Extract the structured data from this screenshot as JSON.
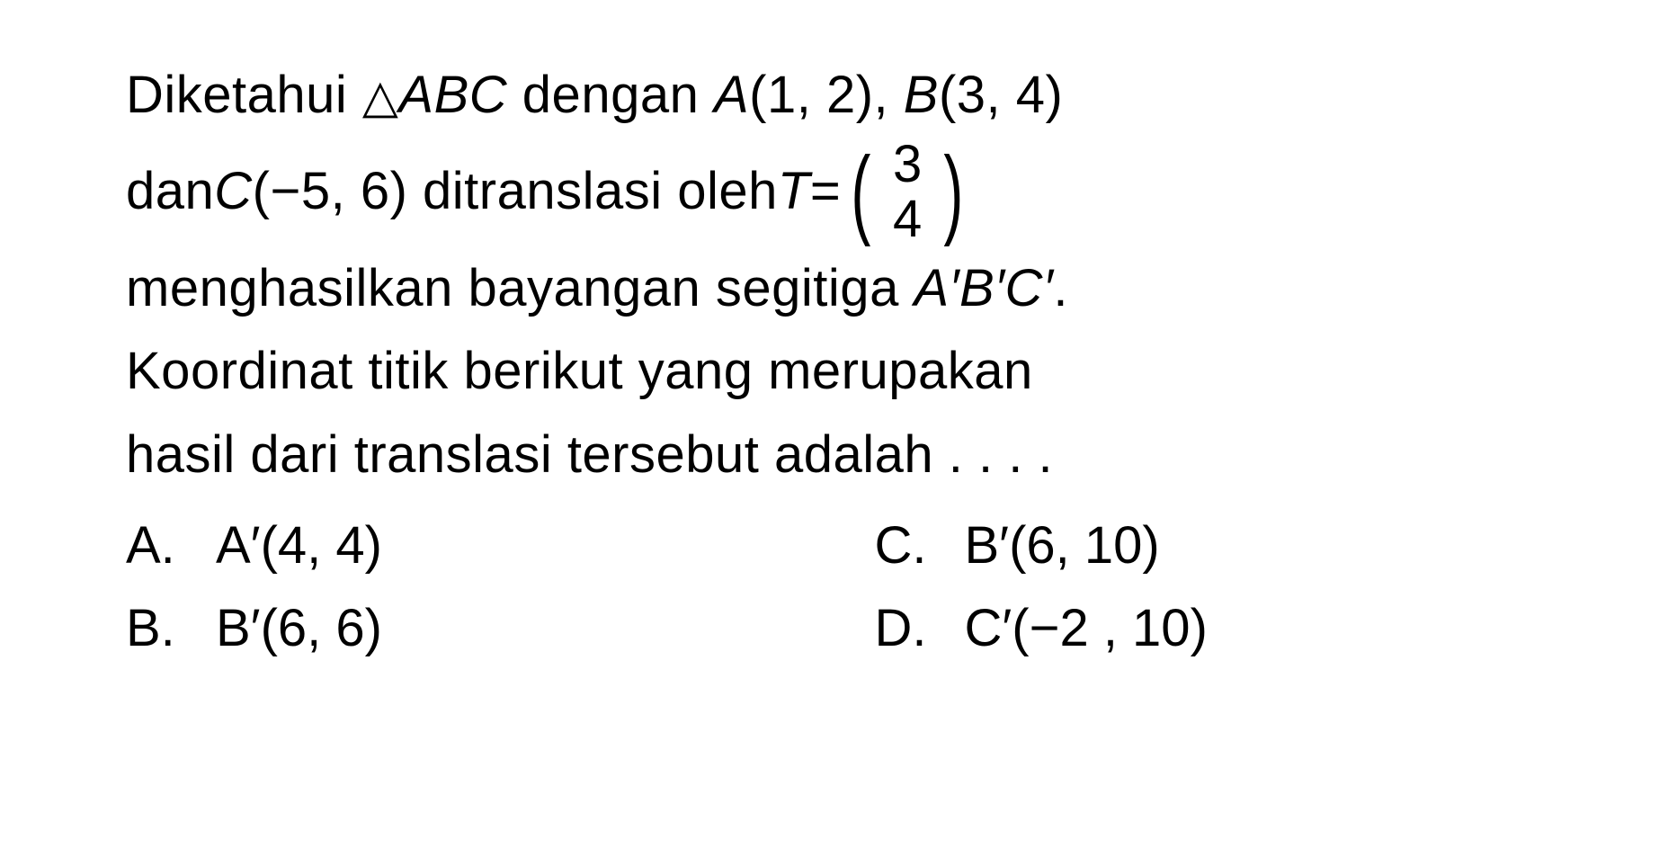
{
  "question": {
    "line1_prefix": "Diketahui ",
    "triangle_symbol": "△",
    "abc": "ABC",
    "line1_mid": " dengan ",
    "pointA": "A",
    "pointA_coords": "(1, 2), ",
    "pointB": "B",
    "pointB_coords": "(3, 4)",
    "line2_prefix": "dan ",
    "pointC": "C",
    "pointC_coords": "(−5, 6) ditranslasi oleh ",
    "T_var": "T",
    "equals": " = ",
    "vec_top": "3",
    "vec_bottom": "4",
    "line3": "menghasilkan bayangan segitiga ",
    "aprime": "A′B′C′",
    "line3_end": ".",
    "line4": "Koordinat titik berikut yang merupakan",
    "line5": "hasil dari translasi tersebut adalah . . . ."
  },
  "options": {
    "a": {
      "label": "A.",
      "var": "A′",
      "coords": "(4, 4)"
    },
    "b": {
      "label": "B.",
      "var": "B′",
      "coords": "(6, 6)"
    },
    "c": {
      "label": "C.",
      "var": "B′",
      "coords": "(6, 10)"
    },
    "d": {
      "label": "D.",
      "var": "C′",
      "coords": "(−2 , 10)"
    }
  },
  "styling": {
    "background_color": "#ffffff",
    "text_color": "#000000",
    "font_size_main": 58,
    "font_weight": 500,
    "line_height": 1.6
  }
}
